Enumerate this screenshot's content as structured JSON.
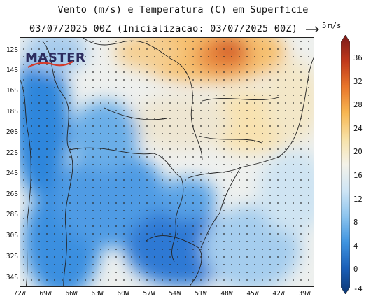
{
  "header": {
    "title": "Vento (m/s) e Temperatura (C) em Superficie",
    "subtitle": "03/07/2025 00Z (Inicializacao: 03/07/2025 00Z)"
  },
  "wind_reference": {
    "value": "5",
    "unit": "m/s"
  },
  "logo": {
    "text": "MASTER"
  },
  "axes": {
    "lat_labels": [
      "12S",
      "14S",
      "16S",
      "18S",
      "20S",
      "22S",
      "24S",
      "26S",
      "28S",
      "30S",
      "32S",
      "34S"
    ],
    "lon_labels": [
      "72W",
      "69W",
      "66W",
      "63W",
      "60W",
      "57W",
      "54W",
      "51W",
      "48W",
      "45W",
      "42W",
      "39W"
    ]
  },
  "colorbar": {
    "ticks": [
      "36",
      "32",
      "28",
      "24",
      "20",
      "16",
      "12",
      "8",
      "4",
      "0",
      "-4"
    ],
    "colors": [
      "#7a1a1a",
      "#c0391b",
      "#e9762a",
      "#f7b651",
      "#f7e1a6",
      "#f4f2e9",
      "#cfe5f5",
      "#8cc4ee",
      "#3e94e0",
      "#1a5fb8",
      "#0c3773"
    ]
  }
}
